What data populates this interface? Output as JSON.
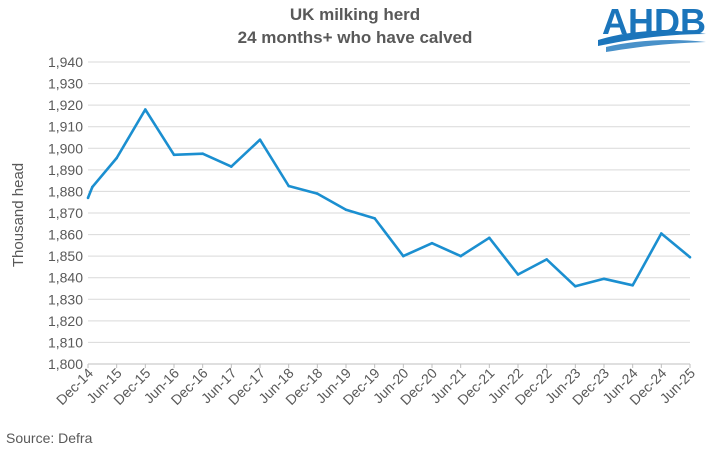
{
  "chart_data": {
    "type": "line",
    "title_lines": [
      "UK milking herd",
      "24 months+ who have calved"
    ],
    "ylabel": "Thousand head",
    "xlabel": "",
    "ylim": [
      1800,
      1940
    ],
    "yticks": [
      1800,
      1810,
      1820,
      1830,
      1840,
      1850,
      1860,
      1870,
      1880,
      1890,
      1900,
      1910,
      1920,
      1930,
      1940
    ],
    "ytick_labels": [
      "1,800",
      "1,810",
      "1,820",
      "1,830",
      "1,840",
      "1,850",
      "1,860",
      "1,870",
      "1,880",
      "1,890",
      "1,900",
      "1,910",
      "1,920",
      "1,930",
      "1,940"
    ],
    "categories": [
      "Dec-14",
      "Jun-15",
      "Dec-15",
      "Jun-16",
      "Dec-16",
      "Jun-17",
      "Dec-17",
      "Jun-18",
      "Dec-18",
      "Jun-19",
      "Dec-19",
      "Jun-20",
      "Dec-20",
      "Jun-21",
      "Dec-21",
      "Jun-22",
      "Dec-22",
      "Jun-23",
      "Dec-23",
      "Jun-24",
      "Dec-24",
      "Jun-25"
    ],
    "points": [
      {
        "x": 0,
        "y": 1877
      },
      {
        "x": 0.15,
        "y": 1882
      },
      {
        "x": 1,
        "y": 1895.5
      },
      {
        "x": 2,
        "y": 1918
      },
      {
        "x": 3,
        "y": 1897
      },
      {
        "x": 4,
        "y": 1897.5
      },
      {
        "x": 5,
        "y": 1891.5
      },
      {
        "x": 6,
        "y": 1904
      },
      {
        "x": 7,
        "y": 1882.5
      },
      {
        "x": 8,
        "y": 1879
      },
      {
        "x": 9,
        "y": 1871.5
      },
      {
        "x": 10,
        "y": 1867.5
      },
      {
        "x": 11,
        "y": 1850
      },
      {
        "x": 12,
        "y": 1856
      },
      {
        "x": 13,
        "y": 1850
      },
      {
        "x": 14,
        "y": 1858.5
      },
      {
        "x": 15,
        "y": 1841.5
      },
      {
        "x": 16,
        "y": 1848.5
      },
      {
        "x": 17,
        "y": 1836
      },
      {
        "x": 18,
        "y": 1839.5
      },
      {
        "x": 19,
        "y": 1836.5
      },
      {
        "x": 20,
        "y": 1860.5
      },
      {
        "x": 21,
        "y": 1849.5
      }
    ],
    "line_color": "#1b8fd0",
    "grid": true,
    "legend": "none"
  },
  "source": "Source: Defra",
  "logo": {
    "text": "AHDB",
    "color": "#1b75bb"
  }
}
